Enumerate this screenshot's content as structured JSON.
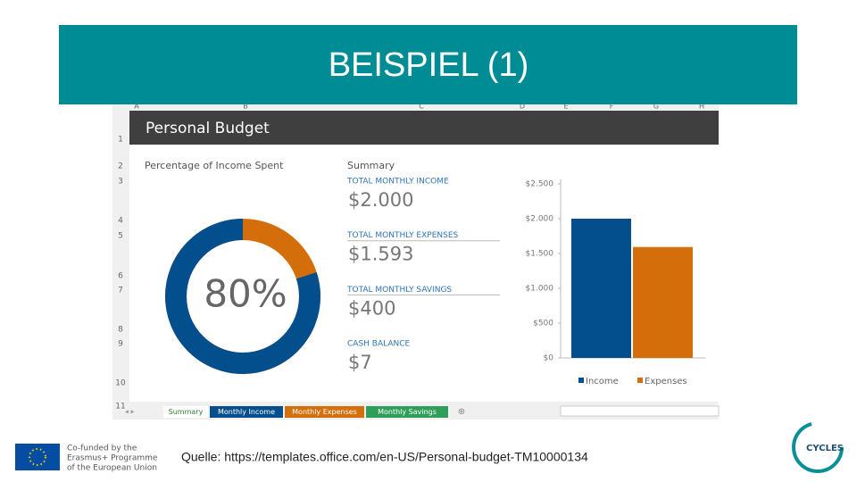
{
  "header": {
    "title": "BEISPIEL (1)"
  },
  "spreadsheet": {
    "columns": [
      "A",
      "B",
      "C",
      "D",
      "E",
      "F",
      "G",
      "H"
    ],
    "rows": [
      "1",
      "2",
      "3",
      "4",
      "5",
      "6",
      "7",
      "8",
      "9",
      "10",
      "11"
    ],
    "title": "Personal Budget",
    "donut": {
      "label": "Percentage of Income Spent",
      "value": 80,
      "value_label": "80%",
      "colors": [
        "#034e8c",
        "#d46e0a"
      ]
    },
    "summary": {
      "title": "Summary",
      "items": [
        {
          "label": "TOTAL MONTHLY INCOME",
          "value": "$2.000"
        },
        {
          "label": "TOTAL MONTHLY EXPENSES",
          "value": "$1.593"
        },
        {
          "label": "TOTAL MONTHLY SAVINGS",
          "value": "$400"
        },
        {
          "label": "CASH BALANCE",
          "value": "$7"
        }
      ]
    },
    "bar_chart": {
      "type": "bar",
      "categories": [
        "Income",
        "Expenses"
      ],
      "values": [
        2000,
        1593
      ],
      "colors": [
        "#034e8c",
        "#d46e0a"
      ],
      "ylim": [
        0,
        2500
      ],
      "yticks": [
        {
          "value": 0,
          "label": "$0"
        },
        {
          "value": 500,
          "label": "$500"
        },
        {
          "value": 1000,
          "label": "$1.000"
        },
        {
          "value": 1500,
          "label": "$1.500"
        },
        {
          "value": 2000,
          "label": "$2.000"
        },
        {
          "value": 2500,
          "label": "$2.500"
        }
      ]
    },
    "tabs": [
      "Summary",
      "Monthly Income",
      "Monthly Expenses",
      "Monthly Savings"
    ]
  },
  "footer": {
    "eu_text": [
      "Co-funded by the",
      "Erasmus+ Programme",
      "of the European Union"
    ],
    "source": "Quelle: https://templates.office.com/en-US/Personal-budget-TM10000134",
    "logo": "CYCLES"
  }
}
